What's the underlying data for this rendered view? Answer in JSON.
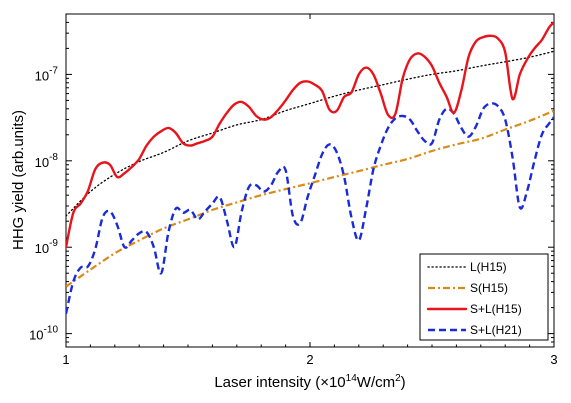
{
  "chart_data": {
    "type": "line",
    "xlabel": "Laser intensity (×10",
    "xlabel_sup1": "14",
    "xlabel_mid": "W/cm",
    "xlabel_sup2": "2",
    "xlabel_end": ")",
    "ylabel": "HHG yield (arb.units)",
    "xscale": "linear",
    "yscale": "log",
    "xlim": [
      1,
      3
    ],
    "ylim": [
      7e-11,
      5e-07
    ],
    "x_ticks": [
      {
        "value": 1,
        "label": "1"
      },
      {
        "value": 2,
        "label": "2"
      },
      {
        "value": 3,
        "label": "3"
      }
    ],
    "y_ticks": [
      {
        "value": 1e-10,
        "base": "10",
        "exp": "-10"
      },
      {
        "value": 1e-09,
        "base": "10",
        "exp": "-9"
      },
      {
        "value": 1e-08,
        "base": "10",
        "exp": "-8"
      },
      {
        "value": 1e-07,
        "base": "10",
        "exp": "-7"
      }
    ],
    "grid": false,
    "legend_position": "bottom-right",
    "series": [
      {
        "name": "L(H15)",
        "color": "#000000",
        "style": "dotted",
        "x": [
          1.0,
          1.1,
          1.2,
          1.3,
          1.4,
          1.5,
          1.6,
          1.7,
          1.8,
          1.9,
          2.0,
          2.1,
          2.2,
          2.3,
          2.4,
          2.5,
          2.6,
          2.7,
          2.8,
          2.9,
          3.0
        ],
        "y": [
          2.3e-09,
          4.4e-09,
          7e-09,
          9.8e-09,
          1.25e-08,
          1.7e-08,
          2.1e-08,
          2.6e-08,
          3e-08,
          3.8e-08,
          4.6e-08,
          5.6e-08,
          6.6e-08,
          7.6e-08,
          8.8e-08,
          1e-07,
          1.1e-07,
          1.25e-07,
          1.4e-07,
          1.58e-07,
          1.85e-07
        ]
      },
      {
        "name": "S(H15)",
        "color": "#d98b1a",
        "style": "dashdot",
        "x": [
          1.0,
          1.1,
          1.2,
          1.3,
          1.4,
          1.5,
          1.6,
          1.7,
          1.8,
          1.9,
          2.0,
          2.1,
          2.2,
          2.3,
          2.4,
          2.5,
          2.6,
          2.7,
          2.8,
          2.9,
          3.0
        ],
        "y": [
          3.5e-10,
          5.5e-10,
          8.5e-10,
          1.2e-09,
          1.65e-09,
          2.1e-09,
          2.7e-09,
          3.3e-09,
          4e-09,
          4.7e-09,
          5.5e-09,
          6.5e-09,
          7.6e-09,
          9e-09,
          1.05e-08,
          1.3e-08,
          1.55e-08,
          1.8e-08,
          2.3e-08,
          2.9e-08,
          3.8e-08
        ]
      },
      {
        "name": "S+L(H15)",
        "color": "#e8141b",
        "style": "solid",
        "x": [
          1.0,
          1.03,
          1.06,
          1.09,
          1.12,
          1.15,
          1.18,
          1.21,
          1.24,
          1.27,
          1.3,
          1.33,
          1.36,
          1.39,
          1.42,
          1.45,
          1.48,
          1.51,
          1.54,
          1.57,
          1.6,
          1.63,
          1.66,
          1.69,
          1.72,
          1.75,
          1.78,
          1.81,
          1.84,
          1.87,
          1.9,
          1.93,
          1.96,
          1.99,
          2.02,
          2.05,
          2.08,
          2.11,
          2.14,
          2.17,
          2.2,
          2.23,
          2.26,
          2.29,
          2.32,
          2.35,
          2.38,
          2.41,
          2.44,
          2.47,
          2.5,
          2.53,
          2.56,
          2.59,
          2.62,
          2.65,
          2.68,
          2.71,
          2.74,
          2.77,
          2.8,
          2.83,
          2.86,
          2.89,
          2.92,
          2.95,
          2.98,
          3.0
        ],
        "y": [
          1e-09,
          2.5e-09,
          3.2e-09,
          4.5e-09,
          8e-09,
          9.5e-09,
          9e-09,
          6.5e-09,
          7.2e-09,
          8.5e-09,
          1.05e-08,
          1.5e-08,
          1.9e-08,
          2.2e-08,
          2.4e-08,
          2.1e-08,
          1.6e-08,
          1.5e-08,
          1.6e-08,
          1.7e-08,
          1.9e-08,
          2.7e-08,
          3.6e-08,
          4.5e-08,
          4.8e-08,
          4.2e-08,
          3.3e-08,
          3e-08,
          3.2e-08,
          3.9e-08,
          5e-08,
          6.6e-08,
          8e-08,
          8.3e-08,
          7.6e-08,
          6.4e-08,
          3.9e-08,
          3.8e-08,
          5.5e-08,
          6.2e-08,
          1e-07,
          1.2e-07,
          1e-07,
          6e-08,
          3.4e-08,
          3.5e-08,
          9e-08,
          1.5e-07,
          1.75e-07,
          1.6e-07,
          1.25e-07,
          8e-08,
          5.5e-08,
          3.6e-08,
          6.5e-08,
          1.6e-07,
          2.4e-07,
          2.7e-07,
          2.8e-07,
          2.6e-07,
          1.8e-07,
          5.2e-08,
          1e-07,
          1.5e-07,
          2e-07,
          2.5e-07,
          3.5e-07,
          4e-07
        ]
      },
      {
        "name": "S+L(H21)",
        "color": "#1a2bd8",
        "style": "dashed",
        "x": [
          1.0,
          1.03,
          1.06,
          1.09,
          1.12,
          1.15,
          1.18,
          1.21,
          1.24,
          1.27,
          1.3,
          1.33,
          1.36,
          1.39,
          1.42,
          1.45,
          1.48,
          1.51,
          1.54,
          1.57,
          1.6,
          1.63,
          1.66,
          1.69,
          1.72,
          1.75,
          1.78,
          1.81,
          1.84,
          1.87,
          1.9,
          1.93,
          1.96,
          1.99,
          2.02,
          2.05,
          2.08,
          2.11,
          2.14,
          2.17,
          2.2,
          2.23,
          2.26,
          2.29,
          2.32,
          2.35,
          2.38,
          2.41,
          2.44,
          2.47,
          2.5,
          2.53,
          2.56,
          2.59,
          2.62,
          2.65,
          2.68,
          2.71,
          2.74,
          2.77,
          2.8,
          2.83,
          2.86,
          2.89,
          2.92,
          2.95,
          2.98,
          3.0
        ],
        "y": [
          1.7e-10,
          4e-10,
          5.8e-10,
          6e-10,
          9.5e-10,
          2.2e-09,
          2.6e-09,
          1.8e-09,
          1e-09,
          1.2e-09,
          1.45e-09,
          1.5e-09,
          1e-09,
          5e-10,
          1.5e-09,
          2.8e-09,
          2.5e-09,
          2.7e-09,
          2.1e-09,
          2.6e-09,
          3.2e-09,
          3.8e-09,
          2e-09,
          1e-09,
          2.6e-09,
          5e-09,
          5.2e-09,
          4.4e-09,
          5.2e-09,
          7.5e-09,
          7.8e-09,
          2.3e-09,
          1.9e-09,
          3.8e-09,
          6.8e-09,
          1.2e-08,
          1.55e-08,
          1.25e-08,
          6.5e-09,
          2.2e-09,
          1.2e-09,
          2.8e-09,
          8e-09,
          1.5e-08,
          2.4e-08,
          3.1e-08,
          3.3e-08,
          3e-08,
          2.2e-08,
          1.7e-08,
          1.6e-08,
          3e-08,
          4e-08,
          3.5e-08,
          2.4e-08,
          1.9e-08,
          2.5e-08,
          4e-08,
          4.6e-08,
          4.3e-08,
          3e-08,
          1.1e-08,
          2.9e-09,
          4.5e-09,
          1e-08,
          2e-08,
          2.7e-08,
          3.2e-08
        ]
      }
    ]
  }
}
